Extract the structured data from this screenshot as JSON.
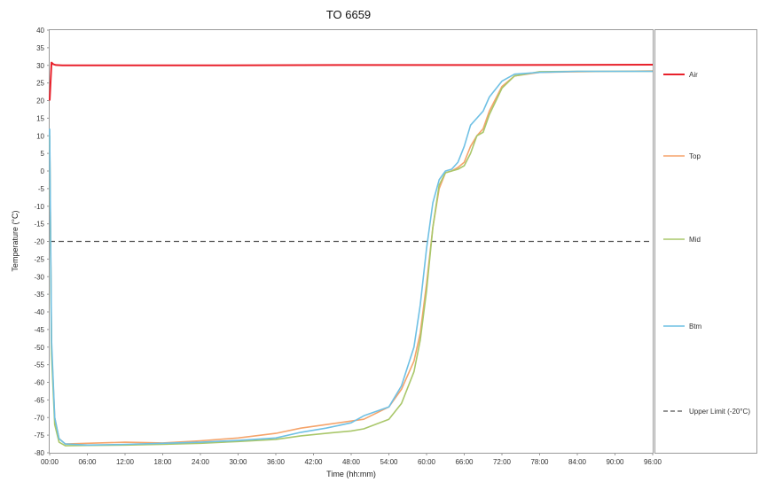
{
  "chart_data": {
    "type": "line",
    "title": "TO 6659",
    "xlabel": "Time (hh:mm)",
    "ylabel": "Temperature (°C)",
    "x_unit": "hours",
    "xlim": [
      0,
      96
    ],
    "ylim": [
      -80,
      40
    ],
    "x_ticks": [
      "00:00",
      "06:00",
      "12:00",
      "18:00",
      "24:00",
      "30:00",
      "36:00",
      "42:00",
      "48:00",
      "54:00",
      "60:00",
      "66:00",
      "72:00",
      "78:00",
      "84:00",
      "90:00",
      "96:00"
    ],
    "y_ticks": [
      "40",
      "35",
      "30",
      "25",
      "20",
      "15",
      "10",
      "5",
      "0",
      "-5",
      "-10",
      "-15",
      "-20",
      "-25",
      "-30",
      "-35",
      "-40",
      "-45",
      "-50",
      "-55",
      "-60",
      "-65",
      "-70",
      "-75",
      "-80"
    ],
    "grid": false,
    "legend_position": "right",
    "series": [
      {
        "name": "Air",
        "color": "#e8212b",
        "dash": false,
        "x": [
          0,
          0.3,
          0.6,
          1,
          2,
          6,
          12,
          24,
          48,
          72,
          96
        ],
        "y": [
          20,
          30.8,
          30.3,
          30.1,
          30,
          30,
          30,
          30,
          30.1,
          30.1,
          30.2
        ]
      },
      {
        "name": "Top",
        "color": "#f5a46b",
        "dash": false,
        "x": [
          0,
          0.3,
          0.8,
          1.5,
          2.5,
          6,
          12,
          18,
          24,
          30,
          36,
          40,
          44,
          48,
          50,
          54,
          56,
          58,
          59,
          60,
          61,
          62,
          63,
          64,
          65,
          66,
          67,
          68,
          69,
          70,
          72,
          74,
          78,
          84,
          90,
          96
        ],
        "y": [
          10,
          -50,
          -70,
          -76,
          -77.5,
          -77.3,
          -77,
          -77.2,
          -76.6,
          -75.8,
          -74.5,
          -73,
          -72,
          -71,
          -70.5,
          -67,
          -62,
          -54,
          -46,
          -32,
          -16,
          -5,
          -0.5,
          0,
          1,
          2.5,
          7,
          10,
          12,
          17,
          24,
          27,
          28,
          28.2,
          28.3,
          28.4
        ]
      },
      {
        "name": "Mid",
        "color": "#a9c76a",
        "dash": false,
        "x": [
          0,
          0.3,
          0.8,
          1.5,
          2.5,
          6,
          12,
          18,
          24,
          30,
          36,
          40,
          44,
          48,
          50,
          54,
          56,
          58,
          59,
          60,
          61,
          62,
          63,
          64,
          65,
          66,
          67,
          68,
          69,
          70,
          72,
          74,
          78,
          84,
          90,
          96
        ],
        "y": [
          10,
          -52,
          -72,
          -77,
          -78,
          -77.9,
          -77.8,
          -77.6,
          -77.3,
          -76.8,
          -76.2,
          -75.2,
          -74.5,
          -73.8,
          -73.2,
          -70.5,
          -66,
          -57,
          -48,
          -34,
          -16,
          -4,
          -0.5,
          0,
          0.5,
          1.5,
          5,
          10,
          11,
          16,
          23.5,
          27,
          28.2,
          28.3,
          28.3,
          28.3
        ]
      },
      {
        "name": "Btm",
        "color": "#6fc0e4",
        "dash": false,
        "x": [
          0,
          0.3,
          0.8,
          1.5,
          2.5,
          6,
          12,
          18,
          24,
          30,
          36,
          40,
          44,
          48,
          50,
          54,
          56,
          58,
          59,
          60,
          61,
          62,
          63,
          64,
          65,
          66,
          67,
          68,
          69,
          70,
          72,
          74,
          78,
          84,
          90,
          96
        ],
        "y": [
          12,
          -48,
          -70,
          -76,
          -77.5,
          -77.8,
          -77.6,
          -77.3,
          -77,
          -76.5,
          -75.8,
          -74.2,
          -73,
          -71.5,
          -69.5,
          -67,
          -61,
          -50,
          -38,
          -22,
          -9,
          -2.5,
          0,
          0.5,
          2.5,
          7,
          13,
          15,
          17,
          21,
          25.5,
          27.5,
          28,
          28.3,
          28.3,
          28.3
        ]
      },
      {
        "name": "Upper Limit (-20°C)",
        "color": "#555555",
        "dash": true,
        "x": [
          0,
          96
        ],
        "y": [
          -20,
          -20
        ]
      }
    ]
  }
}
